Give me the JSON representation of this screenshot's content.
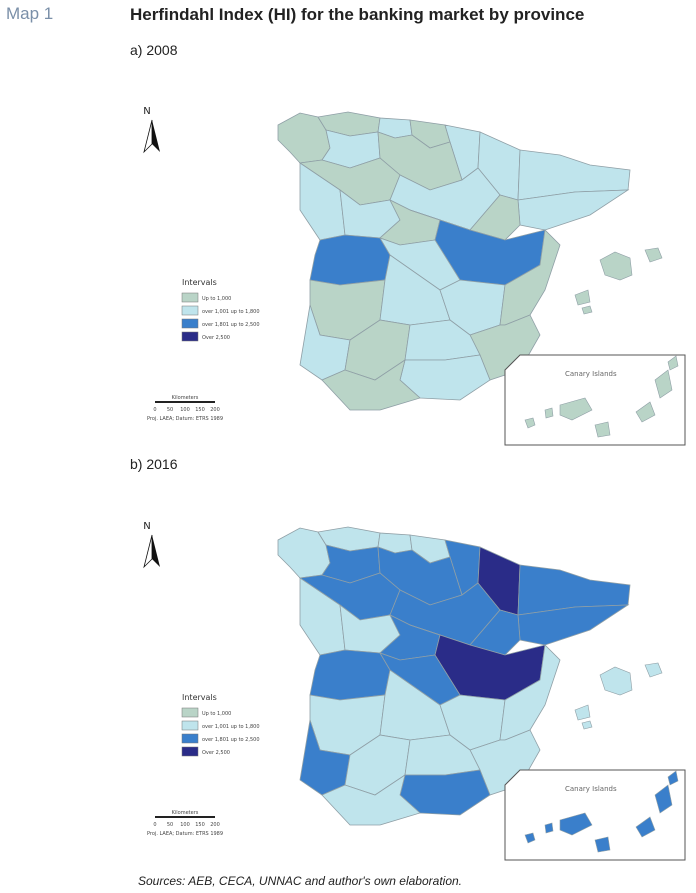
{
  "header": {
    "map_label": "Map 1",
    "title": "Herfindahl Index (HI) for the banking market by province"
  },
  "colors": {
    "up_to_1000": "#b9d4c7",
    "1001_1800": "#bfe4ec",
    "1801_2500": "#3a7fcb",
    "over_2500": "#2a2c88",
    "border": "#8f9fa6",
    "inset_frame": "#555555"
  },
  "legend": {
    "title": "Intervals",
    "items": [
      {
        "label": "Up to 1,000",
        "color_key": "up_to_1000"
      },
      {
        "label": "over 1,001 up to 1,800",
        "color_key": "1001_1800"
      },
      {
        "label": "over 1,801 up to 2,500",
        "color_key": "1801_2500"
      },
      {
        "label": "Over 2,500",
        "color_key": "over_2500"
      }
    ]
  },
  "north_arrow": {
    "letter": "N"
  },
  "scale_bar": {
    "unit": "Kilometers",
    "ticks": [
      "0",
      "50",
      "100",
      "150",
      "200"
    ],
    "projection": "Proj. LAEA; Datum: ETRS 1989"
  },
  "inset": {
    "label": "Canary Islands"
  },
  "panels": [
    {
      "label": "a) 2008",
      "regions": {
        "galicia": "up_to_1000",
        "asturias": "up_to_1000",
        "cantabria": "1001_1800",
        "basque": "up_to_1000",
        "navarra": "1001_1800",
        "catalonia_n": "1001_1800",
        "catalonia_s": "1001_1800",
        "huesca": "1001_1800",
        "zaragoza": "up_to_1000",
        "leon": "1001_1800",
        "burgos": "up_to_1000",
        "valladolid": "up_to_1000",
        "soria": "1001_1800",
        "salamanca": "1001_1800",
        "avila_segovia": "1001_1800",
        "madrid": "up_to_1000",
        "guadalajara": "1001_1800",
        "teruel_cuenca": "1801_2500",
        "caceres": "1801_2500",
        "badajoz": "up_to_1000",
        "toledo": "1001_1800",
        "ciudad_real": "1001_1800",
        "albacete": "1001_1800",
        "valencia": "up_to_1000",
        "alicante_murcia": "up_to_1000",
        "huelva": "1001_1800",
        "sevilla": "up_to_1000",
        "cordoba_jaen": "1001_1800",
        "granada_almeria": "1001_1800",
        "cadiz_malaga": "up_to_1000",
        "balearic": "up_to_1000",
        "canary": "up_to_1000"
      }
    },
    {
      "label": "b) 2016",
      "regions": {
        "galicia": "1001_1800",
        "asturias": "1001_1800",
        "cantabria": "1001_1800",
        "basque": "1001_1800",
        "navarra": "1801_2500",
        "catalonia_n": "1801_2500",
        "catalonia_s": "1801_2500",
        "huesca": "over_2500",
        "zaragoza": "1801_2500",
        "leon": "1801_2500",
        "burgos": "1801_2500",
        "valladolid": "1801_2500",
        "soria": "1801_2500",
        "salamanca": "1001_1800",
        "avila_segovia": "1001_1800",
        "madrid": "1801_2500",
        "guadalajara": "1801_2500",
        "teruel_cuenca": "over_2500",
        "caceres": "1801_2500",
        "badajoz": "1001_1800",
        "toledo": "1801_2500",
        "ciudad_real": "1001_1800",
        "albacete": "1001_1800",
        "valencia": "1001_1800",
        "alicante_murcia": "1001_1800",
        "huelva": "1801_2500",
        "sevilla": "1001_1800",
        "cordoba_jaen": "1001_1800",
        "granada_almeria": "1801_2500",
        "cadiz_malaga": "1001_1800",
        "balearic": "1001_1800",
        "canary": "1801_2500"
      }
    }
  ],
  "footer": {
    "sources": "Sources: AEB, CECA, UNNAC and author's own elaboration."
  }
}
